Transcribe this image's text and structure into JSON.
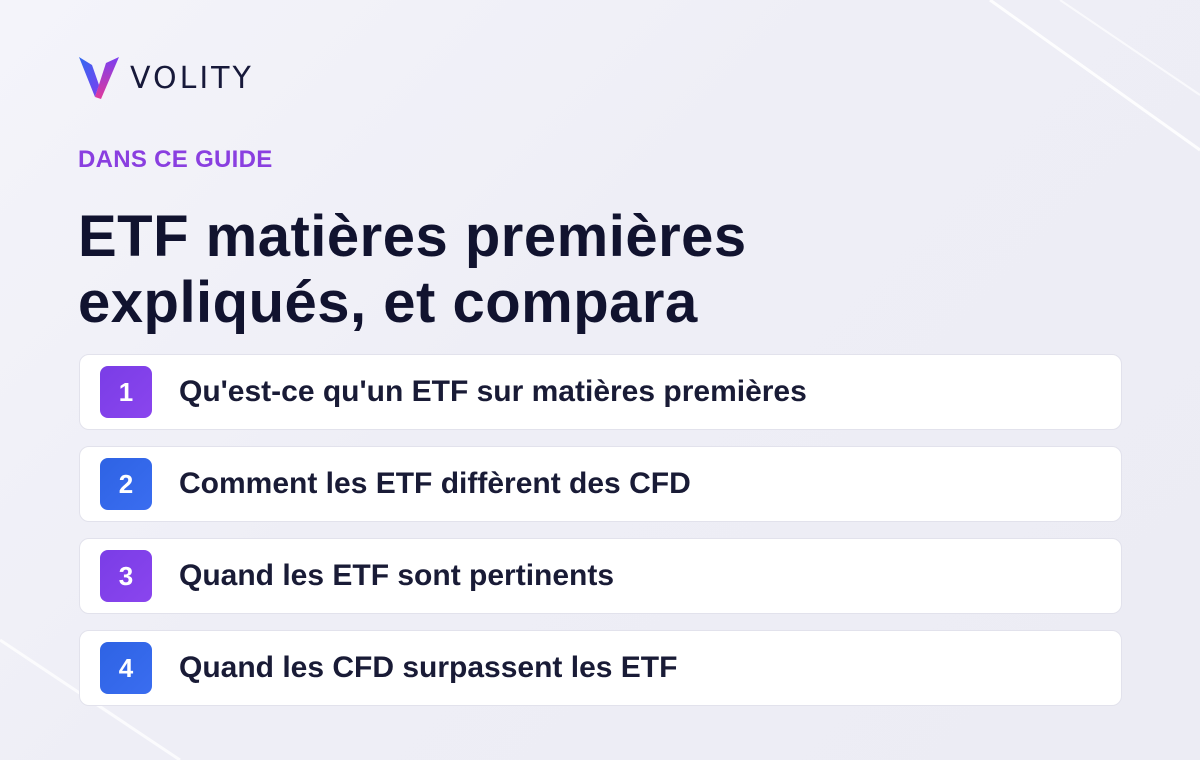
{
  "brand": {
    "name": "VOLITY",
    "accent_purple": "#8a3fe0",
    "accent_blue": "#2e63e4",
    "text_dark": "#11132f"
  },
  "header": {
    "eyebrow": "DANS CE GUIDE",
    "title_line_1": "ETF matières premières",
    "title_line_2": "expliqués, et compara"
  },
  "toc": {
    "items": [
      {
        "number": "1",
        "label": "Qu'est-ce qu'un ETF sur matières premières",
        "color": "purple"
      },
      {
        "number": "2",
        "label": "Comment les ETF diffèrent des CFD",
        "color": "blue"
      },
      {
        "number": "3",
        "label": "Quand les ETF sont pertinents",
        "color": "purple"
      },
      {
        "number": "4",
        "label": "Quand les CFD surpassent les ETF",
        "color": "blue"
      }
    ]
  }
}
